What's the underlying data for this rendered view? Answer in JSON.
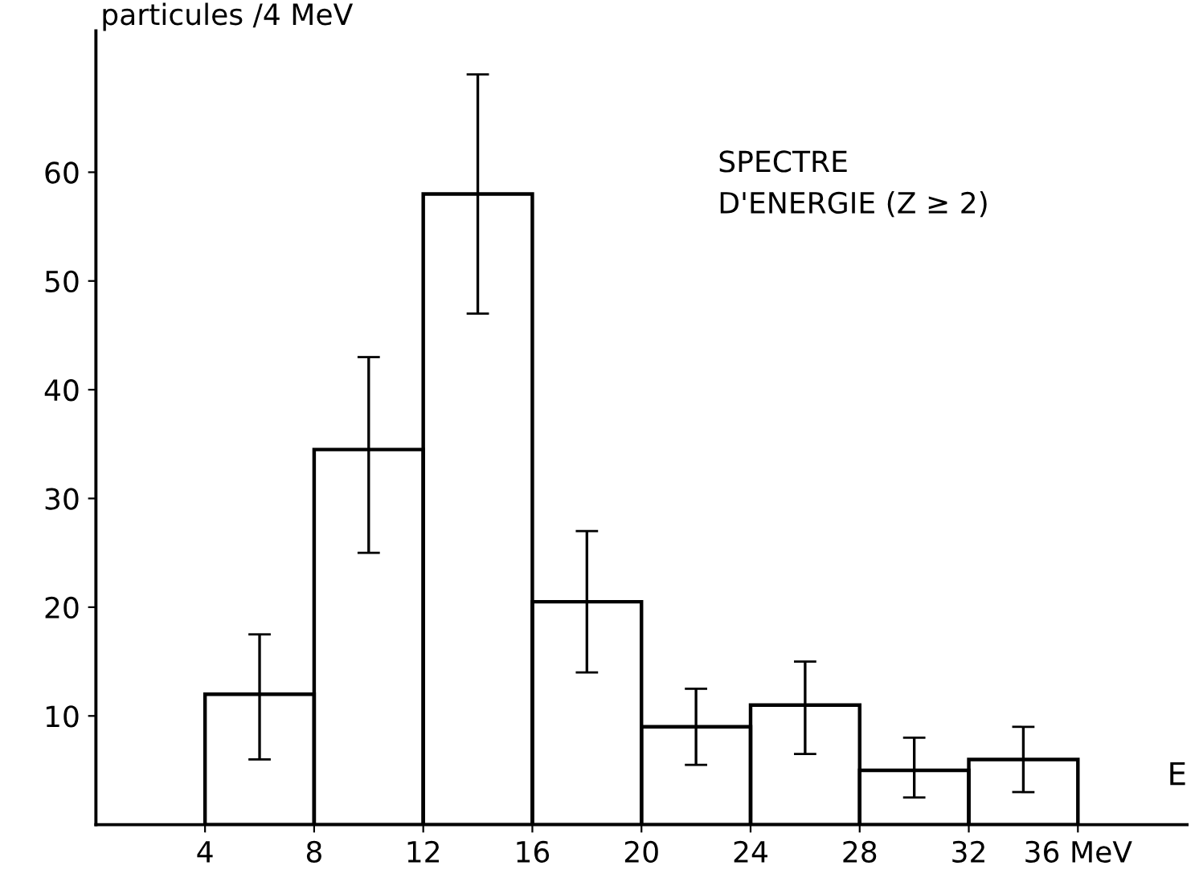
{
  "chart_data": {
    "type": "histogram",
    "bins": [
      4,
      8,
      12,
      16,
      20,
      24,
      28,
      32,
      36
    ],
    "values": [
      12,
      34.5,
      58,
      20.5,
      9,
      11,
      5,
      6
    ],
    "errors": [
      [
        6,
        17.5
      ],
      [
        25,
        43
      ],
      [
        47,
        69
      ],
      [
        14,
        27
      ],
      [
        5.5,
        12.5
      ],
      [
        6.5,
        15
      ],
      [
        2.5,
        8
      ],
      [
        3,
        9
      ]
    ],
    "color": "#000000",
    "xlim": [
      0,
      40
    ],
    "ylim": [
      0,
      73
    ],
    "xticks": [
      4,
      8,
      12,
      16,
      20,
      24,
      28,
      32,
      {
        "value": 36,
        "label": "36 MeV"
      }
    ],
    "yticks": [
      10,
      20,
      30,
      40,
      50,
      60
    ],
    "xlabel": "E",
    "ylabel": "particules /4 MeV",
    "annotations": [
      "SPECTRE\nD'ENERGIE (Z ≥ 2)"
    ],
    "grid": false,
    "legend": false
  }
}
